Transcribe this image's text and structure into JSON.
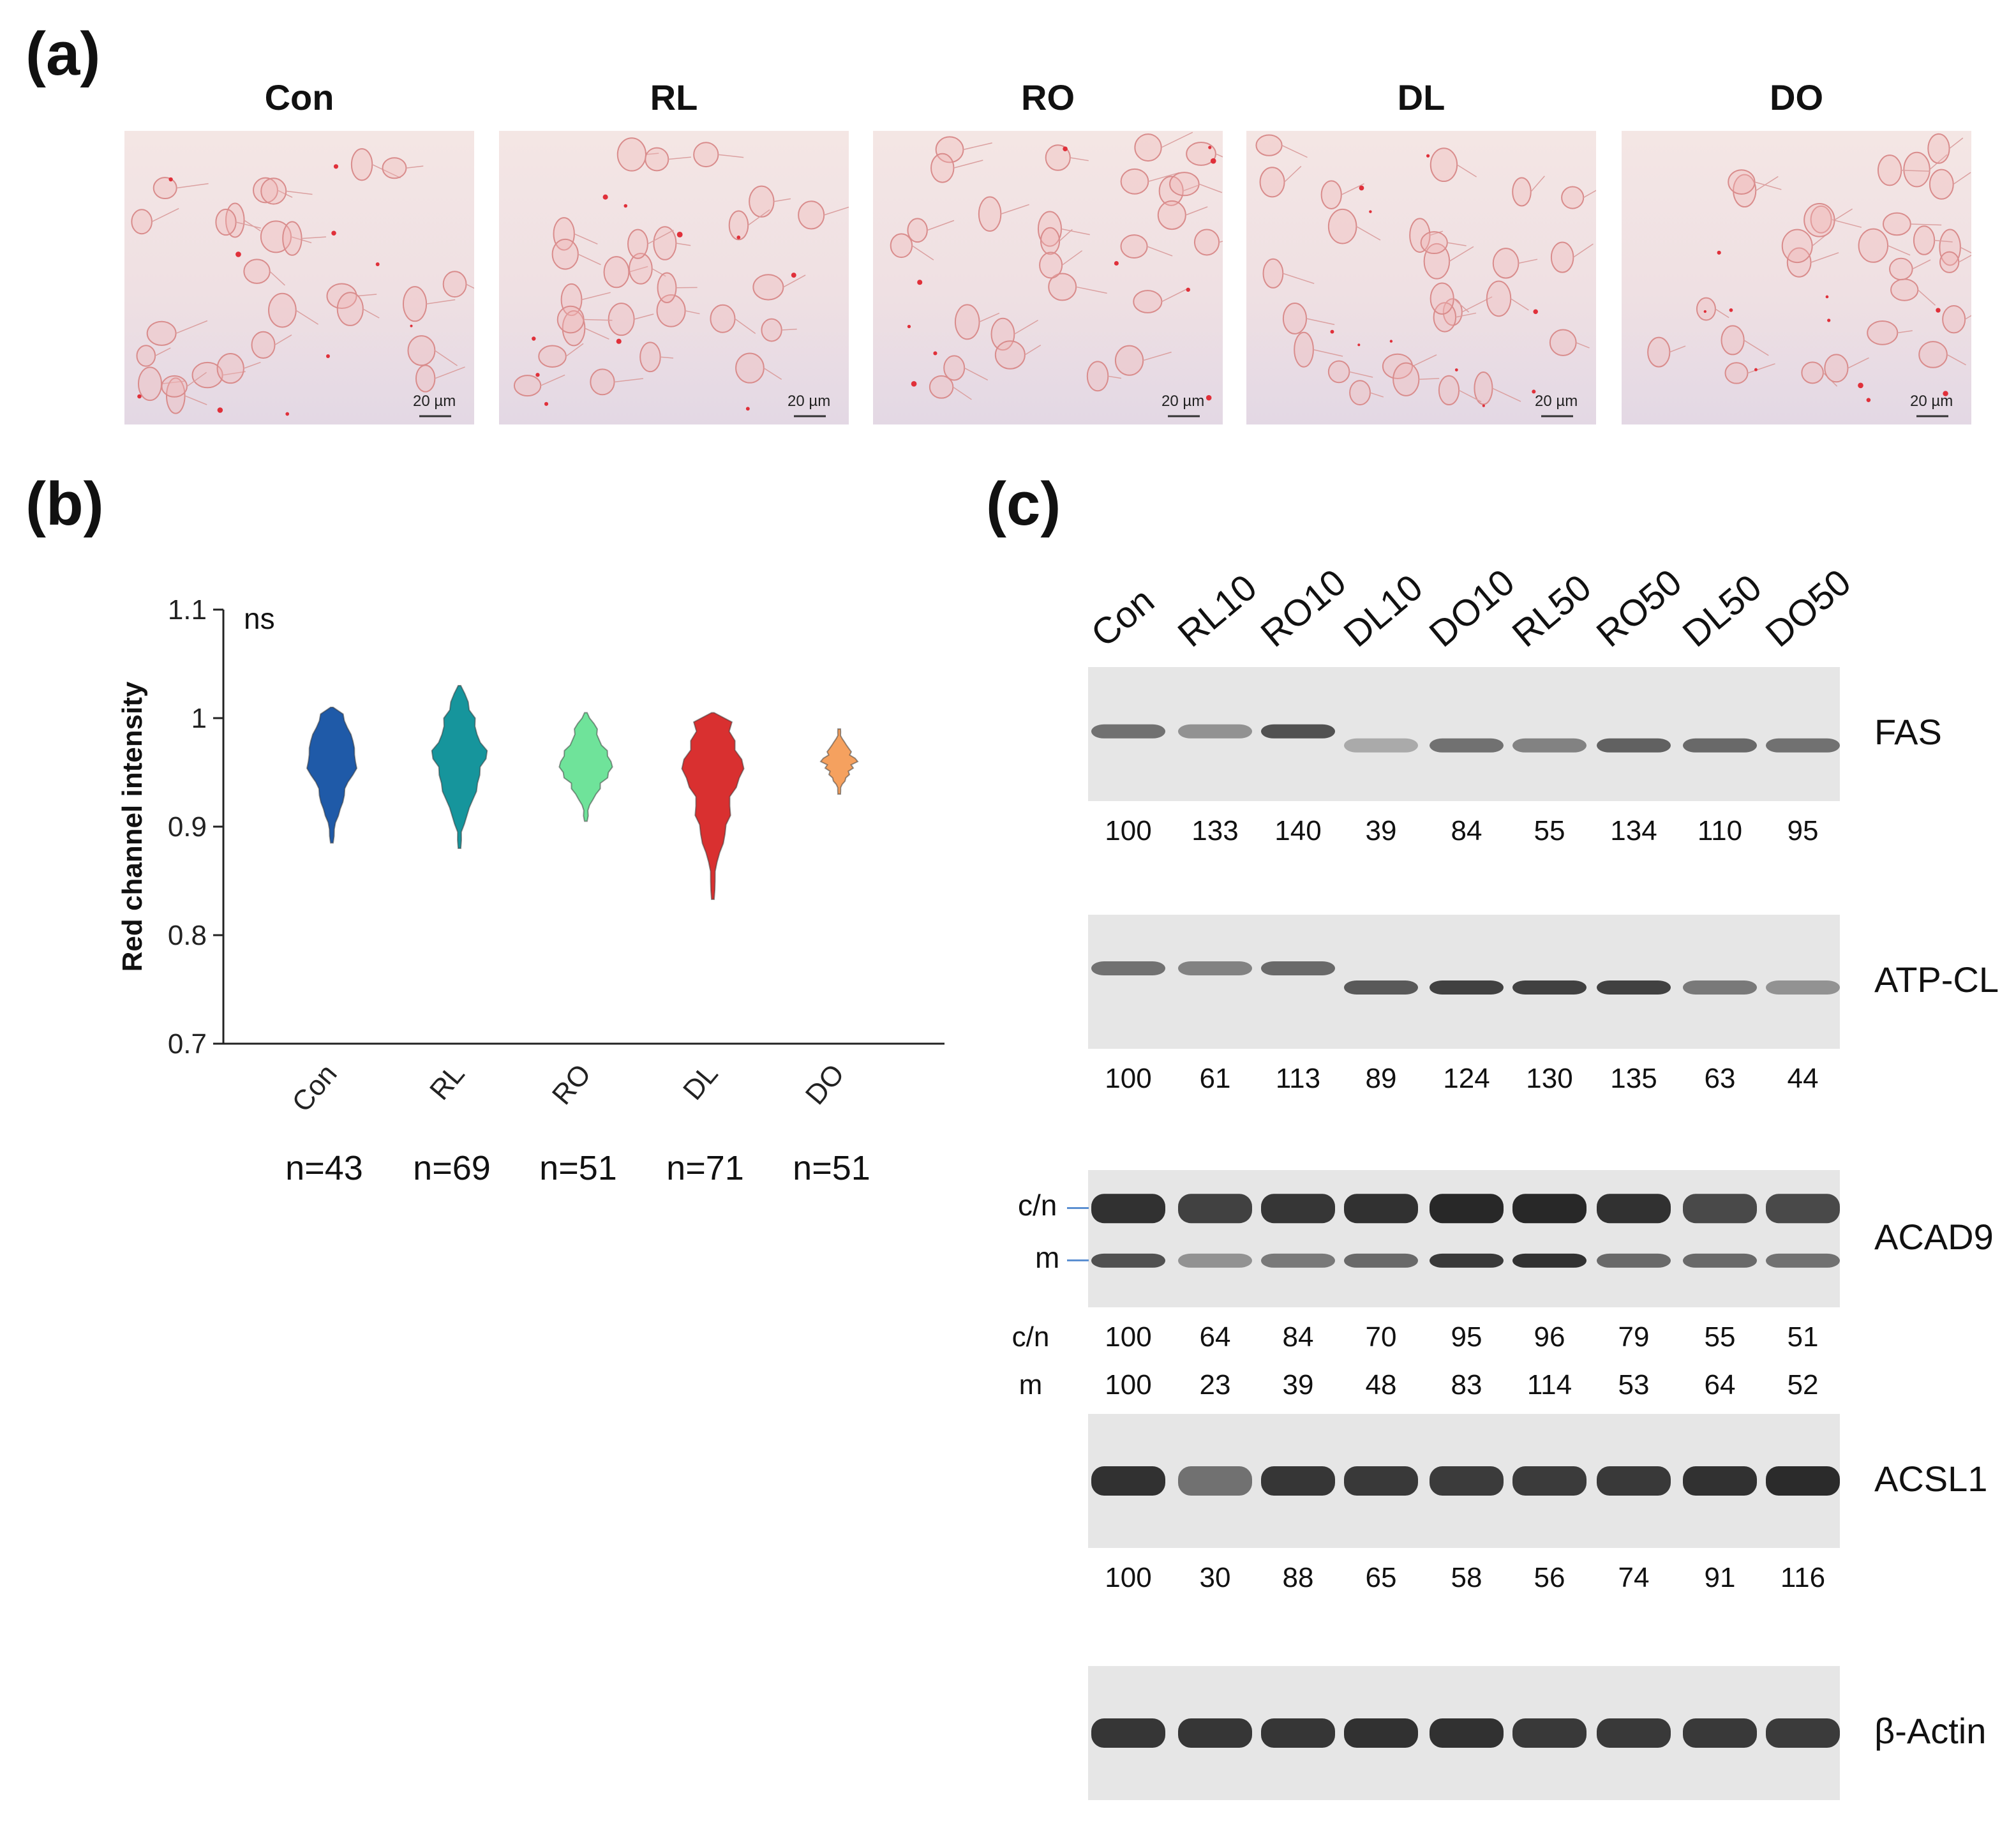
{
  "panels": {
    "a": "(a)",
    "b": "(b)",
    "c": "(c)"
  },
  "micrographs": [
    {
      "title": "Con",
      "scale_bar": "20 µm"
    },
    {
      "title": "RL",
      "scale_bar": "20 µm"
    },
    {
      "title": "RO",
      "scale_bar": "20 µm"
    },
    {
      "title": "DL",
      "scale_bar": "20 µm"
    },
    {
      "title": "DO",
      "scale_bar": "20 µm"
    }
  ],
  "chart_data": {
    "type": "violin",
    "ylabel": "Red channel intensity",
    "ylim": [
      0.7,
      1.1
    ],
    "yticks": [
      "0.7",
      "0.8",
      "0.9",
      "1",
      "1.1"
    ],
    "annotation": "ns",
    "categories": [
      "Con",
      "RL",
      "RO",
      "DL",
      "DO"
    ],
    "counts": [
      "n=43",
      "n=69",
      "n=51",
      "n=71",
      "n=51"
    ],
    "colors": [
      "#1f5aa8",
      "#16959c",
      "#6fe39a",
      "#d93030",
      "#f5a15f"
    ],
    "series": [
      {
        "name": "Con",
        "min": 0.885,
        "max": 1.01,
        "median": 0.965
      },
      {
        "name": "RL",
        "min": 0.88,
        "max": 1.03,
        "median": 0.965
      },
      {
        "name": "RO",
        "min": 0.905,
        "max": 1.005,
        "median": 0.96
      },
      {
        "name": "DL",
        "min": 0.833,
        "max": 1.005,
        "median": 0.955
      },
      {
        "name": "DO",
        "min": 0.93,
        "max": 0.99,
        "median": 0.96
      }
    ]
  },
  "western": {
    "lanes": [
      "Con",
      "RL10",
      "RO10",
      "DL10",
      "DO10",
      "RL50",
      "RO50",
      "DL50",
      "DO50"
    ],
    "blots": [
      {
        "protein": "FAS",
        "rows": [
          {
            "label": "",
            "values": [
              "100",
              "133",
              "140",
              "39",
              "84",
              "55",
              "134",
              "110",
              "95"
            ]
          }
        ]
      },
      {
        "protein": "ATP-CL",
        "rows": [
          {
            "label": "",
            "values": [
              "100",
              "61",
              "113",
              "89",
              "124",
              "130",
              "135",
              "63",
              "44"
            ]
          }
        ]
      },
      {
        "protein": "ACAD9",
        "markers": [
          "c/n",
          "m"
        ],
        "rows": [
          {
            "label": "c/n",
            "values": [
              "100",
              "64",
              "84",
              "70",
              "95",
              "96",
              "79",
              "55",
              "51"
            ]
          },
          {
            "label": "m",
            "values": [
              "100",
              "23",
              "39",
              "48",
              "83",
              "114",
              "53",
              "64",
              "52"
            ]
          }
        ]
      },
      {
        "protein": "ACSL1",
        "rows": [
          {
            "label": "",
            "values": [
              "100",
              "30",
              "88",
              "65",
              "58",
              "56",
              "74",
              "91",
              "116"
            ]
          }
        ]
      },
      {
        "protein": "β-Actin",
        "rows": []
      }
    ]
  }
}
